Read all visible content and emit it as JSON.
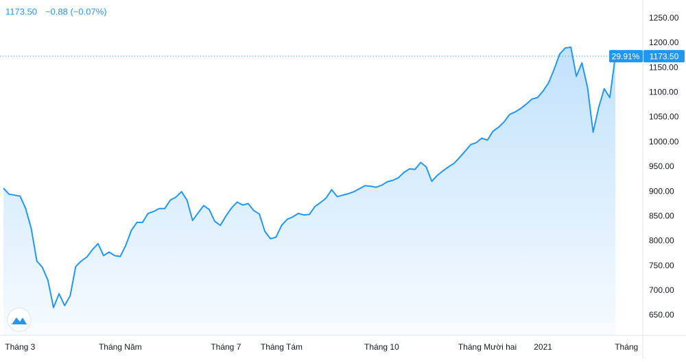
{
  "chart_data": {
    "type": "area",
    "legend_price": "1173.50",
    "legend_change": "−0.88 (−0.07%)",
    "color": "#2196f3",
    "categories": [
      null,
      null,
      null,
      "Tháng 3",
      null,
      null,
      null,
      null,
      null,
      null,
      null,
      null,
      null,
      null,
      null,
      null,
      null,
      null,
      null,
      null,
      null,
      "Tháng Năm",
      null,
      null,
      null,
      null,
      null,
      null,
      null,
      null,
      null,
      null,
      null,
      null,
      null,
      null,
      null,
      null,
      null,
      null,
      "Tháng 7",
      null,
      null,
      null,
      null,
      null,
      null,
      null,
      null,
      null,
      "Tháng Tám",
      null,
      null,
      null,
      null,
      null,
      null,
      null,
      null,
      null,
      null,
      null,
      null,
      null,
      null,
      null,
      null,
      null,
      "Tháng 10",
      null,
      null,
      null,
      null,
      null,
      null,
      null,
      null,
      null,
      null,
      null,
      null,
      null,
      null,
      null,
      null,
      null,
      null,
      "Tháng Mười hai",
      null,
      null,
      null,
      null,
      null,
      null,
      null,
      null,
      null,
      "2021",
      null,
      null,
      null,
      null,
      null,
      null,
      null,
      null,
      null,
      null,
      null,
      null,
      null,
      null,
      "Tháng"
    ],
    "values": [
      907,
      895,
      893,
      891,
      866,
      826,
      760,
      747,
      721,
      666,
      694,
      670,
      690,
      749,
      760,
      768,
      783,
      795,
      771,
      778,
      771,
      769,
      792,
      822,
      838,
      838,
      856,
      860,
      866,
      866,
      883,
      889,
      900,
      883,
      842,
      857,
      872,
      864,
      840,
      832,
      851,
      867,
      879,
      873,
      876,
      862,
      855,
      820,
      805,
      808,
      832,
      844,
      849,
      856,
      853,
      854,
      870,
      878,
      887,
      904,
      890,
      893,
      896,
      900,
      906,
      912,
      911,
      909,
      913,
      920,
      923,
      928,
      939,
      946,
      945,
      959,
      950,
      921,
      933,
      942,
      950,
      957,
      969,
      982,
      995,
      999,
      1008,
      1004,
      1022,
      1030,
      1041,
      1056,
      1061,
      1068,
      1077,
      1087,
      1090,
      1103,
      1120,
      1147,
      1178,
      1190,
      1192,
      1133,
      1160,
      1110,
      1020,
      1070,
      1108,
      1090,
      1173.5,
      null,
      null
    ],
    "ylim": [
      610,
      1287
    ],
    "yticks": [
      {
        "value": 650,
        "label": "650.00"
      },
      {
        "value": 700,
        "label": "700.00"
      },
      {
        "value": 750,
        "label": "750.00"
      },
      {
        "value": 800,
        "label": "800.00"
      },
      {
        "value": 850,
        "label": "850.00"
      },
      {
        "value": 900,
        "label": "900.00"
      },
      {
        "value": 950,
        "label": "950.00"
      },
      {
        "value": 1000,
        "label": "1000.00"
      },
      {
        "value": 1050,
        "label": "1050.00"
      },
      {
        "value": 1100,
        "label": "1100.00"
      },
      {
        "value": 1150,
        "label": "1150.00"
      },
      {
        "value": 1200,
        "label": "1200.00"
      },
      {
        "value": 1250,
        "label": "1250.00"
      }
    ],
    "price_line": {
      "value": 1173.5,
      "label": "1173.50",
      "change_label": "29.91%"
    },
    "grid": false
  }
}
